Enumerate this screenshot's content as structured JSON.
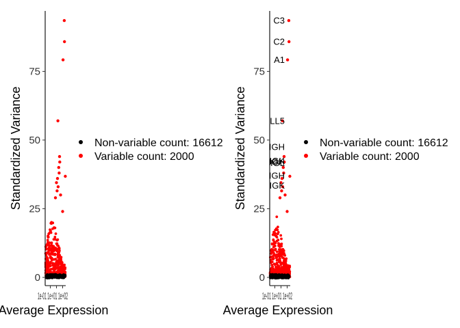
{
  "chart_data": [
    {
      "type": "scatter",
      "xlabel": "Average Expression",
      "ylabel": "Standardized Variance",
      "xticks": [
        "1e-01",
        "1e+01",
        "1e+02"
      ],
      "xtick_text": "1e-01 1e+01 1e+02",
      "yticks": [
        0,
        25,
        50,
        75
      ],
      "ylim": [
        -3,
        97
      ],
      "colors": {
        "nonvariable": "#000000",
        "variable": "#ff0000"
      },
      "legend_placement": "right",
      "legend": [
        {
          "label": "Non-variable count: 16612",
          "color": "#000000"
        },
        {
          "label": "Variable count: 2000",
          "color": "#ff0000"
        }
      ],
      "highlight_points": [
        {
          "x": 0.93,
          "y": 93.5
        },
        {
          "x": 0.94,
          "y": 85.8
        },
        {
          "x": 0.87,
          "y": 79.2
        },
        {
          "x": 0.62,
          "y": 57.0
        },
        {
          "x": 0.7,
          "y": 44.0
        },
        {
          "x": 0.71,
          "y": 42.0
        },
        {
          "x": 0.66,
          "y": 40.0
        },
        {
          "x": 0.68,
          "y": 38.0
        },
        {
          "x": 0.98,
          "y": 36.8
        },
        {
          "x": 0.6,
          "y": 36.0
        },
        {
          "x": 0.55,
          "y": 34.5
        },
        {
          "x": 0.63,
          "y": 33.0
        },
        {
          "x": 0.58,
          "y": 31.5
        },
        {
          "x": 0.75,
          "y": 30.0
        },
        {
          "x": 0.5,
          "y": 29.0
        },
        {
          "x": 0.85,
          "y": 24.0
        }
      ],
      "labels": []
    },
    {
      "type": "scatter",
      "xlabel": "Average Expression",
      "ylabel": "Standardized Variance",
      "xticks": [
        "1e-01",
        "1e+01",
        "1e+02"
      ],
      "xtick_text": "1e-01 1e+01 1e+02",
      "yticks": [
        0,
        25,
        50,
        75
      ],
      "ylim": [
        -3,
        97
      ],
      "colors": {
        "nonvariable": "#000000",
        "variable": "#ff0000"
      },
      "legend_placement": "right",
      "legend": [
        {
          "label": "Non-variable count: 16612",
          "color": "#000000"
        },
        {
          "label": "Variable count: 2000",
          "color": "#ff0000"
        }
      ],
      "highlight_points": [
        {
          "x": 0.93,
          "y": 93.5
        },
        {
          "x": 0.94,
          "y": 85.8
        },
        {
          "x": 0.87,
          "y": 79.2
        },
        {
          "x": 0.62,
          "y": 57.0
        },
        {
          "x": 0.7,
          "y": 44.0
        },
        {
          "x": 0.71,
          "y": 42.0
        },
        {
          "x": 0.66,
          "y": 40.0
        },
        {
          "x": 0.68,
          "y": 38.0
        },
        {
          "x": 0.98,
          "y": 36.8
        },
        {
          "x": 0.6,
          "y": 36.0
        },
        {
          "x": 0.55,
          "y": 34.5
        },
        {
          "x": 0.63,
          "y": 33.0
        },
        {
          "x": 0.58,
          "y": 31.5
        },
        {
          "x": 0.75,
          "y": 30.0
        },
        {
          "x": 0.5,
          "y": 29.0
        },
        {
          "x": 0.85,
          "y": 24.0
        }
      ],
      "labels": [
        {
          "text": "C3",
          "y": 93.5
        },
        {
          "text": "C2",
          "y": 85.8
        },
        {
          "text": "A1",
          "y": 79.2
        },
        {
          "text": "LL5",
          "y": 57.0
        },
        {
          "text": "IGH",
          "y": 47.5
        },
        {
          "text": "IGK",
          "y": 42.4
        },
        {
          "text": "IGH",
          "y": 42.0
        },
        {
          "text": "IGL",
          "y": 41.6
        },
        {
          "text": "IGH",
          "y": 37.0
        },
        {
          "text": "IGK",
          "y": 33.5
        }
      ]
    }
  ]
}
